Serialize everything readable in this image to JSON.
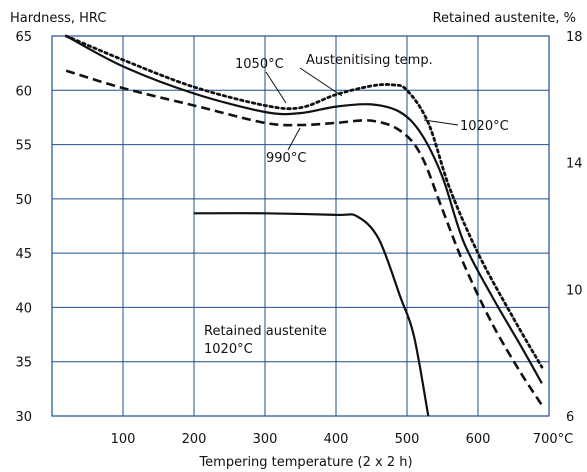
{
  "chart_data": {
    "type": "line",
    "y_left_label": "Hardness, HRC",
    "y_right_label": "Retained austenite, %",
    "x_label": "Tempering temperature (2 x 2 h)",
    "x_ticks": [
      "100",
      "200",
      "300",
      "400",
      "500",
      "600",
      "700°C"
    ],
    "y_left_ticks": [
      "65",
      "60",
      "55",
      "50",
      "45",
      "40",
      "35",
      "30"
    ],
    "y_right_ticks": [
      "18",
      "14",
      "10",
      "6"
    ],
    "xlim": [
      0,
      700
    ],
    "ylim": [
      30,
      65
    ],
    "y_right_lim": [
      6,
      18
    ],
    "grid": true,
    "annotations": {
      "austenitising": "Austenitising temp.",
      "t1050": "1050°C",
      "t1020": "1020°C",
      "t990": "990°C",
      "retained_line1": "Retained austenite",
      "retained_line2": "1020°C"
    },
    "series": [
      {
        "name": "1050°C",
        "style": "dotted",
        "x": [
          20,
          100,
          200,
          300,
          350,
          400,
          450,
          480,
          500,
          530,
          560,
          600,
          650,
          690
        ],
        "y": [
          65,
          62.8,
          60.3,
          58.6,
          58.4,
          59.6,
          60.4,
          60.5,
          60.0,
          57.0,
          51.0,
          45.0,
          39.0,
          34.5
        ]
      },
      {
        "name": "1020°C",
        "style": "solid",
        "x": [
          20,
          100,
          200,
          300,
          350,
          400,
          450,
          490,
          520,
          550,
          580,
          620,
          660,
          690
        ],
        "y": [
          65,
          62.2,
          59.7,
          58.0,
          57.9,
          58.5,
          58.7,
          58.0,
          56.0,
          52.0,
          46.0,
          41.0,
          36.5,
          33.0
        ]
      },
      {
        "name": "990°C",
        "style": "dashed",
        "x": [
          20,
          100,
          200,
          300,
          350,
          400,
          450,
          490,
          520,
          550,
          580,
          620,
          660,
          690
        ],
        "y": [
          61.8,
          60.2,
          58.6,
          57.0,
          56.8,
          57.0,
          57.2,
          56.3,
          54.0,
          49.0,
          44.0,
          38.5,
          34.0,
          31.0
        ]
      },
      {
        "name": "Retained austenite 1020°C",
        "axis": "right",
        "style": "solid",
        "x": [
          200,
          300,
          400,
          430,
          460,
          490,
          510,
          530
        ],
        "y": [
          12.4,
          12.4,
          12.35,
          12.3,
          11.6,
          9.8,
          8.5,
          6.0
        ]
      }
    ]
  }
}
